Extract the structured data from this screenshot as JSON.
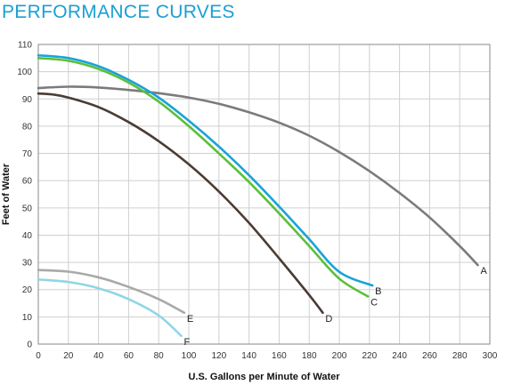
{
  "chart_data": {
    "type": "line",
    "title": "PERFORMANCE CURVES",
    "xlabel": "U.S. Gallons per Minute of Water",
    "ylabel": "Feet of Water",
    "xlim": [
      0,
      300
    ],
    "ylim": [
      0,
      110
    ],
    "xticks": [
      0,
      20,
      40,
      60,
      80,
      100,
      120,
      140,
      160,
      180,
      200,
      220,
      240,
      260,
      280,
      300
    ],
    "yticks": [
      0,
      10,
      20,
      30,
      40,
      50,
      60,
      70,
      80,
      90,
      100,
      110
    ],
    "grid": true,
    "series": [
      {
        "name": "A",
        "color": "#7b7b7b",
        "x": [
          0,
          20,
          40,
          60,
          80,
          100,
          120,
          140,
          160,
          180,
          200,
          220,
          240,
          260,
          280,
          292
        ],
        "y": [
          94,
          94.5,
          94.2,
          93.3,
          92.1,
          90.5,
          88.2,
          85.1,
          81.3,
          76.5,
          70.5,
          63.5,
          55.5,
          46.5,
          36,
          29
        ]
      },
      {
        "name": "B",
        "color": "#1aa3d9",
        "x": [
          0,
          20,
          40,
          60,
          80,
          100,
          120,
          140,
          160,
          180,
          200,
          222
        ],
        "y": [
          106,
          105,
          102,
          97,
          90.5,
          82,
          72.5,
          62,
          50.5,
          38.5,
          26.5,
          21.5
        ]
      },
      {
        "name": "C",
        "color": "#5bbf3a",
        "x": [
          0,
          20,
          40,
          60,
          80,
          100,
          120,
          140,
          160,
          180,
          200,
          219
        ],
        "y": [
          105,
          104,
          101,
          96,
          89,
          80,
          70,
          59.5,
          48,
          36,
          24,
          17.5
        ]
      },
      {
        "name": "D",
        "color": "#4a3c34",
        "x": [
          0,
          10,
          20,
          40,
          60,
          80,
          100,
          120,
          140,
          160,
          180,
          189
        ],
        "y": [
          92,
          91.6,
          90.5,
          87,
          81.5,
          74.5,
          66,
          56,
          44.5,
          31.5,
          18,
          11.5
        ]
      },
      {
        "name": "E",
        "color": "#a9a9a9",
        "x": [
          0,
          20,
          40,
          60,
          80,
          97
        ],
        "y": [
          27.2,
          26.6,
          24.5,
          21,
          16.5,
          11.5
        ]
      },
      {
        "name": "F",
        "color": "#8fd6e6",
        "x": [
          0,
          20,
          40,
          60,
          80,
          95
        ],
        "y": [
          23.7,
          22.8,
          20.5,
          16.5,
          10.5,
          3
        ]
      }
    ]
  }
}
